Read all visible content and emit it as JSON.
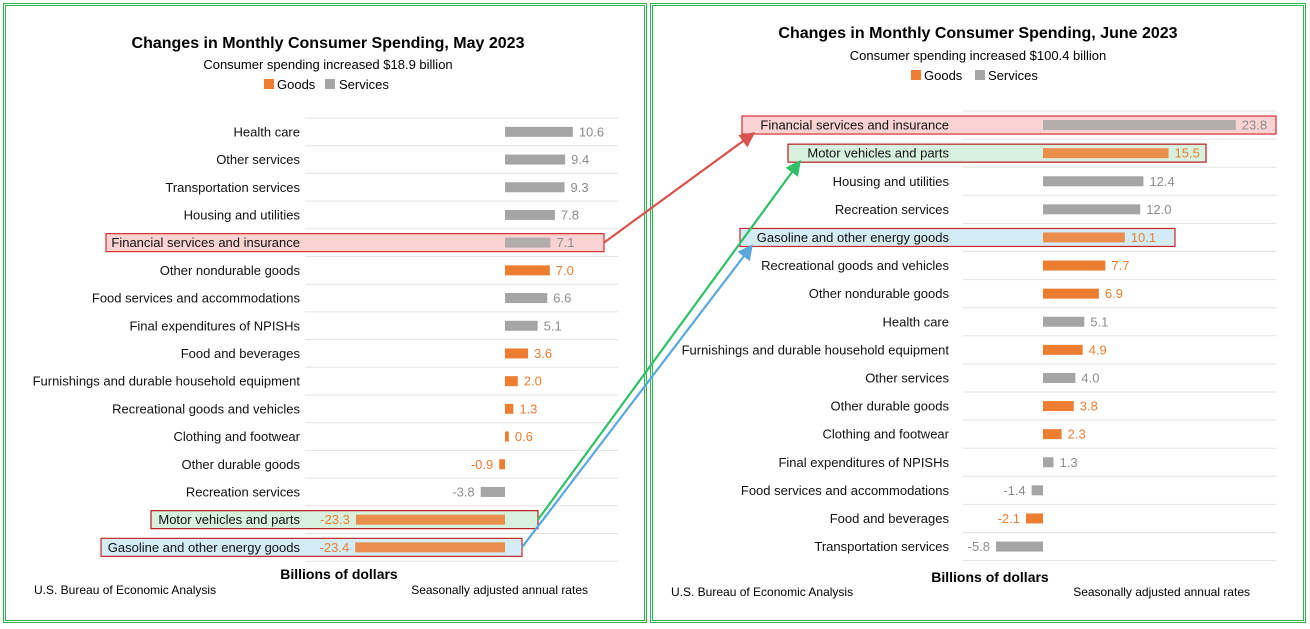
{
  "colors": {
    "goods": "#ed7d31",
    "services": "#a5a5a5",
    "goods_label": "#ed7d31",
    "services_label": "#8c8c8c",
    "frame": "#2fb34f"
  },
  "chart_data": [
    {
      "type": "bar",
      "orientation": "horizontal",
      "title": "Changes in Monthly Consumer Spending, May 2023",
      "subtitle": "Consumer spending increased $18.9 billion",
      "legend": [
        "Goods",
        "Services"
      ],
      "xlabel": "Billions of dollars",
      "source": "U.S. Bureau of Economic Analysis",
      "note": "Seasonally adjusted annual rates",
      "categories": [
        "Health care",
        "Other services",
        "Transportation services",
        "Housing and utilities",
        "Financial services and insurance",
        "Other nondurable goods",
        "Food services and accommodations",
        "Final expenditures of NPISHs",
        "Food and beverages",
        "Furnishings and durable household equipment",
        "Recreational goods and vehicles",
        "Clothing and footwear",
        "Other durable goods",
        "Recreation services",
        "Motor vehicles and parts",
        "Gasoline and other energy goods"
      ],
      "values": [
        10.6,
        9.4,
        9.3,
        7.8,
        7.1,
        7.0,
        6.6,
        5.1,
        3.6,
        2.0,
        1.3,
        0.6,
        -0.9,
        -3.8,
        -23.3,
        -23.4
      ],
      "value_labels": [
        "10.6",
        "9.4",
        "9.3",
        "7.8",
        "7.1",
        "7.0",
        "6.6",
        "5.1",
        "3.6",
        "2.0",
        "1.3",
        "0.6",
        "-0.9",
        "-3.8",
        "-23.3",
        "-23.4"
      ],
      "kind": [
        "services",
        "services",
        "services",
        "services",
        "services",
        "goods",
        "services",
        "services",
        "goods",
        "goods",
        "goods",
        "goods",
        "goods",
        "services",
        "goods",
        "goods"
      ],
      "xlim": [
        -25,
        24
      ],
      "highlights": [
        {
          "category": "Financial services and insurance",
          "color": "red"
        },
        {
          "category": "Motor vehicles and parts",
          "color": "green"
        },
        {
          "category": "Gasoline and other energy goods",
          "color": "blue"
        }
      ]
    },
    {
      "type": "bar",
      "orientation": "horizontal",
      "title": "Changes in Monthly Consumer Spending, June 2023",
      "subtitle": "Consumer spending increased $100.4 billion",
      "legend": [
        "Goods",
        "Services"
      ],
      "xlabel": "Billions of dollars",
      "source": "U.S. Bureau of Economic Analysis",
      "note": "Seasonally adjusted annual rates",
      "categories": [
        "Financial services and insurance",
        "Motor vehicles and parts",
        "Housing and utilities",
        "Recreation services",
        "Gasoline and other energy goods",
        "Recreational goods and vehicles",
        "Other nondurable goods",
        "Health care",
        "Furnishings and durable household equipment",
        "Other services",
        "Other durable goods",
        "Clothing and footwear",
        "Final expenditures of NPISHs",
        "Food services and accommodations",
        "Food and beverages",
        "Transportation services"
      ],
      "values": [
        23.8,
        15.5,
        12.4,
        12.0,
        10.1,
        7.7,
        6.9,
        5.1,
        4.9,
        4.0,
        3.8,
        2.3,
        1.3,
        -1.4,
        -2.1,
        -5.8
      ],
      "value_labels": [
        "23.8",
        "15.5",
        "12.4",
        "12.0",
        "10.1",
        "7.7",
        "6.9",
        "5.1",
        "4.9",
        "4.0",
        "3.8",
        "2.3",
        "1.3",
        "-1.4",
        "-2.1",
        "-5.8"
      ],
      "kind": [
        "services",
        "goods",
        "services",
        "services",
        "goods",
        "goods",
        "goods",
        "services",
        "goods",
        "services",
        "goods",
        "goods",
        "services",
        "services",
        "goods",
        "services"
      ],
      "xlim": [
        -10,
        30
      ],
      "highlights": [
        {
          "category": "Financial services and insurance",
          "color": "red"
        },
        {
          "category": "Motor vehicles and parts",
          "color": "green"
        },
        {
          "category": "Gasoline and other energy goods",
          "color": "blue"
        }
      ]
    }
  ]
}
